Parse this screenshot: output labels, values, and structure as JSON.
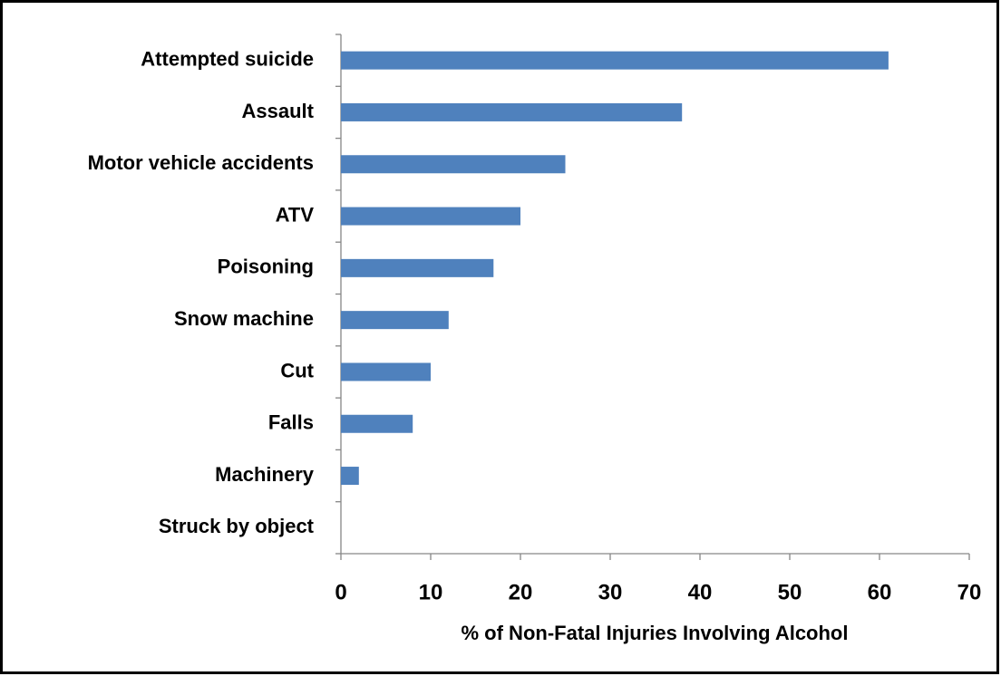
{
  "chart_data": {
    "type": "bar",
    "orientation": "horizontal",
    "xlabel": "% of Non-Fatal Injuries Involving Alcohol",
    "categories": [
      "Attempted suicide",
      "Assault",
      "Motor vehicle accidents",
      "ATV",
      "Poisoning",
      "Snow machine",
      "Cut",
      "Falls",
      "Machinery",
      "Struck by object"
    ],
    "values": [
      61,
      38,
      25,
      20,
      17,
      12,
      10,
      8,
      2,
      0
    ],
    "color": "#4f81bd",
    "xlim": [
      0,
      70
    ],
    "xticks": [
      0,
      10,
      20,
      30,
      40,
      50,
      60,
      70
    ],
    "grid": false
  }
}
